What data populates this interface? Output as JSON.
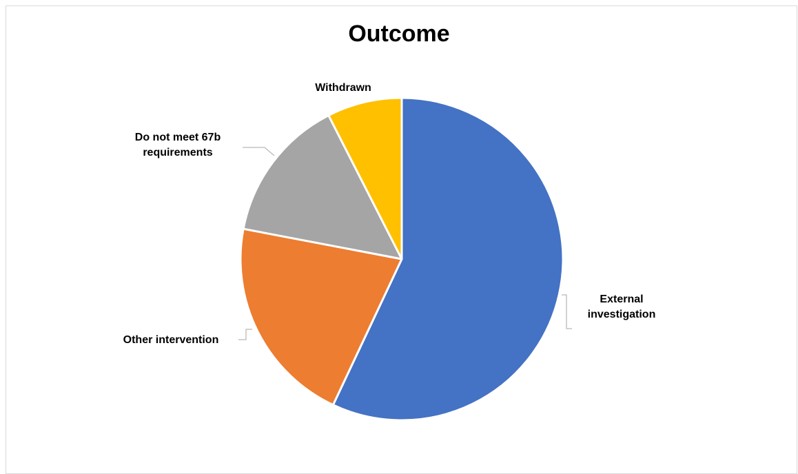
{
  "chart_data": {
    "type": "pie",
    "title": "Outcome",
    "categories": [
      "External investigation",
      "Other intervention",
      "Do not meet 67b requirements",
      "Withdrawn"
    ],
    "values": [
      57,
      21,
      14.5,
      7.5
    ],
    "colors": [
      "#4472C4",
      "#ED7D31",
      "#A5A5A5",
      "#FFC000"
    ],
    "labels": [
      [
        "External",
        "investigation"
      ],
      [
        "Other intervention"
      ],
      [
        "Do not meet 67b",
        "requirements"
      ],
      [
        "Withdrawn"
      ]
    ],
    "legend": "none"
  }
}
